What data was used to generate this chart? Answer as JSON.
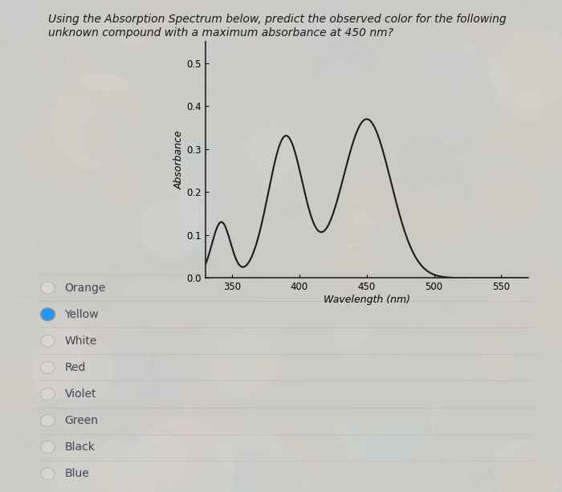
{
  "title_line1": "Using the Absorption Spectrum below, predict the observed color for the following",
  "title_line2": "unknown compound with a maximum absorbance at 450 nm?",
  "xlabel": "Wavelength (nm)",
  "ylabel": "Absorbance",
  "xlim": [
    330,
    570
  ],
  "ylim": [
    0.0,
    0.55
  ],
  "yticks": [
    0.0,
    0.1,
    0.2,
    0.3,
    0.4,
    0.5
  ],
  "xticks": [
    350,
    400,
    450,
    500,
    550
  ],
  "curve_color": "#1a1a1a",
  "curve_lw": 1.5,
  "fig_bg": "#cccac4",
  "radio_options": [
    "Orange",
    "Yellow",
    "White",
    "Red",
    "Violet",
    "Green",
    "Black",
    "Blue"
  ],
  "selected_option": "Yellow",
  "selected_color": "#2196F3",
  "title_fontsize": 10.0,
  "option_fontsize": 10,
  "radio_text_color": "#444455"
}
